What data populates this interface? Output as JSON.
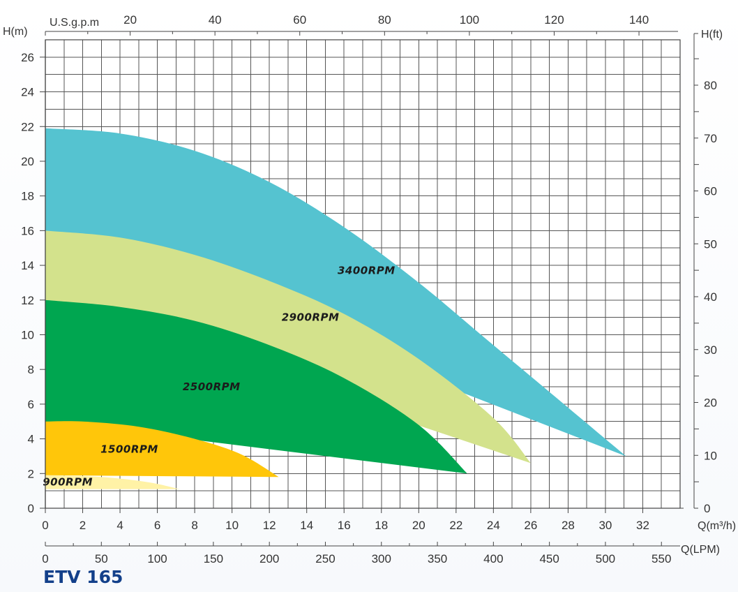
{
  "model": "ETV 165",
  "chart_data": {
    "type": "area",
    "title": "",
    "left_axis": {
      "label": "H(m)",
      "range": [
        0,
        27
      ],
      "ticks": [
        0,
        2,
        4,
        6,
        8,
        10,
        12,
        14,
        16,
        18,
        20,
        22,
        24,
        26
      ]
    },
    "right_axis": {
      "label": "H(ft)",
      "ticks": [
        0,
        10,
        20,
        30,
        40,
        50,
        60,
        70,
        80
      ]
    },
    "bottom_axis": {
      "label": "Q(m³/h)",
      "range": [
        0,
        34
      ],
      "ticks": [
        0,
        2,
        4,
        6,
        8,
        10,
        12,
        14,
        16,
        18,
        20,
        22,
        24,
        26,
        28,
        30,
        32
      ]
    },
    "lpm_axis": {
      "label": "Q(LPM)",
      "ticks": [
        0,
        50,
        100,
        150,
        200,
        250,
        300,
        350,
        400,
        450,
        500,
        550
      ]
    },
    "top_axis": {
      "label": "U.S.g.p.m",
      "ticks": [
        20,
        40,
        60,
        80,
        100,
        120,
        140
      ]
    },
    "grid": true,
    "series": [
      {
        "name": "3400RPM",
        "color": "#55c3d0",
        "upper": [
          [
            0,
            21.9
          ],
          [
            4,
            21.6
          ],
          [
            8,
            20.6
          ],
          [
            12,
            18.8
          ],
          [
            16,
            16.2
          ],
          [
            20,
            13.0
          ],
          [
            24,
            9.4
          ],
          [
            28,
            5.8
          ],
          [
            31.1,
            3.0
          ]
        ],
        "lower": [
          [
            0,
            16.0
          ],
          [
            31.1,
            3.0
          ]
        ]
      },
      {
        "name": "2900RPM",
        "color": "#d3e28c",
        "upper": [
          [
            0,
            16.0
          ],
          [
            4,
            15.6
          ],
          [
            8,
            14.6
          ],
          [
            12,
            13.1
          ],
          [
            16,
            11.2
          ],
          [
            20,
            8.6
          ],
          [
            24,
            5.2
          ],
          [
            26.0,
            2.6
          ]
        ],
        "lower": [
          [
            0,
            12.0
          ],
          [
            26.0,
            2.6
          ]
        ]
      },
      {
        "name": "2500RPM",
        "color": "#00a650",
        "upper": [
          [
            0,
            12.0
          ],
          [
            4,
            11.6
          ],
          [
            8,
            10.8
          ],
          [
            12,
            9.4
          ],
          [
            16,
            7.5
          ],
          [
            20,
            4.8
          ],
          [
            22.6,
            2.0
          ]
        ],
        "lower": [
          [
            0,
            5.0
          ],
          [
            22.6,
            2.0
          ]
        ]
      },
      {
        "name": "1500RPM",
        "color": "#ffc60a",
        "upper": [
          [
            0,
            5.0
          ],
          [
            2,
            5.0
          ],
          [
            5,
            4.7
          ],
          [
            8,
            4.0
          ],
          [
            10.5,
            3.1
          ],
          [
            12.5,
            1.8
          ]
        ],
        "lower": [
          [
            0,
            1.9
          ],
          [
            12.5,
            1.8
          ]
        ]
      },
      {
        "name": "900RPM",
        "color": "#fff2a6",
        "upper": [
          [
            0,
            1.9
          ],
          [
            3,
            1.8
          ],
          [
            5.5,
            1.5
          ],
          [
            7.2,
            1.1
          ]
        ],
        "lower": [
          [
            0,
            1.1
          ],
          [
            7.2,
            1.1
          ]
        ]
      }
    ],
    "labels": [
      {
        "text": "3400RPM",
        "at": [
          17.2,
          13.5
        ]
      },
      {
        "text": "2900RPM",
        "at": [
          14.2,
          10.8
        ]
      },
      {
        "text": "2500RPM",
        "at": [
          8.9,
          6.8
        ]
      },
      {
        "text": "1500RPM",
        "at": [
          4.5,
          3.2
        ]
      },
      {
        "text": "900RPM",
        "at": [
          1.2,
          1.3
        ]
      }
    ]
  }
}
